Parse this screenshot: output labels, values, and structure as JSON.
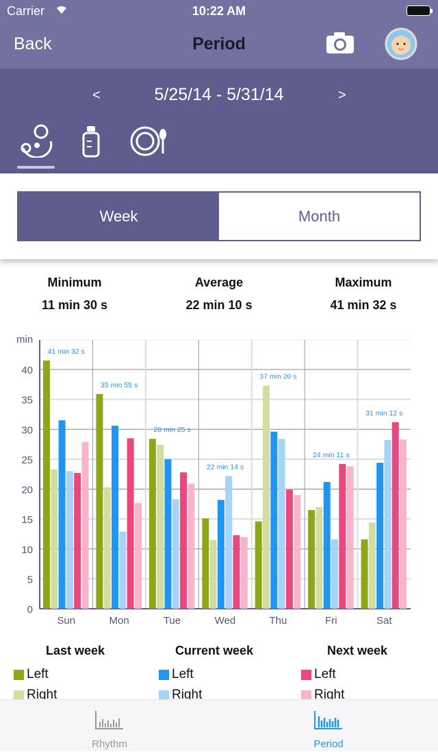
{
  "status": {
    "carrier": "Carrier",
    "time": "10:22 AM"
  },
  "nav": {
    "back": "Back",
    "title": "Period"
  },
  "datebar": {
    "range": "5/25/14 - 5/31/14",
    "prev": "<",
    "next": ">"
  },
  "segment": {
    "week": "Week",
    "month": "Month",
    "selected": "Week"
  },
  "stats": {
    "min_label": "Minimum",
    "min": "11 min 30 s",
    "avg_label": "Average",
    "avg": "22 min 10 s",
    "max_label": "Maximum",
    "max": "41 min 32 s"
  },
  "legend": {
    "last": "Last week",
    "current": "Current week",
    "next": "Next week",
    "left": "Left",
    "right": "Right"
  },
  "tabs": {
    "rhythm": "Rhythm",
    "period": "Period"
  },
  "colors": {
    "header": "#5f5d8e",
    "accent": "#2196f0",
    "last_left": "#8fa61a",
    "last_right": "#d4dca0",
    "cur_left": "#2196f0",
    "cur_right": "#a6d4f7",
    "next_left": "#ea4680",
    "next_right": "#f7b4ca"
  },
  "chart_data": {
    "type": "bar",
    "ylabel": "min",
    "ylim": [
      0,
      45
    ],
    "yticks": [
      0,
      5,
      10,
      15,
      20,
      25,
      30,
      35,
      40
    ],
    "categories": [
      "Sun",
      "Mon",
      "Tue",
      "Wed",
      "Thu",
      "Fri",
      "Sat"
    ],
    "series": [
      {
        "name": "Last week Left",
        "values": [
          41.5,
          35.9,
          28.4,
          15.1,
          14.6,
          16.5,
          11.6
        ]
      },
      {
        "name": "Last week Right",
        "values": [
          23.3,
          20.3,
          27.4,
          11.5,
          37.3,
          17.0,
          14.4
        ]
      },
      {
        "name": "Current week Left",
        "values": [
          31.5,
          30.6,
          25.0,
          18.2,
          29.6,
          21.2,
          24.4
        ]
      },
      {
        "name": "Current week Right",
        "values": [
          23.0,
          12.9,
          18.3,
          22.2,
          28.4,
          11.6,
          28.2
        ]
      },
      {
        "name": "Next week Left",
        "values": [
          22.7,
          28.5,
          22.8,
          12.3,
          19.9,
          24.2,
          31.2
        ]
      },
      {
        "name": "Next week Right",
        "values": [
          27.9,
          17.7,
          20.9,
          12.0,
          19.0,
          23.8,
          28.3
        ]
      }
    ],
    "annotations": [
      "41 min 32 s",
      "35 min 55 s",
      "28 min 25 s",
      "22 min 14 s",
      "37 min 20 s",
      "24 min 11 s",
      "31 min 12 s"
    ]
  }
}
